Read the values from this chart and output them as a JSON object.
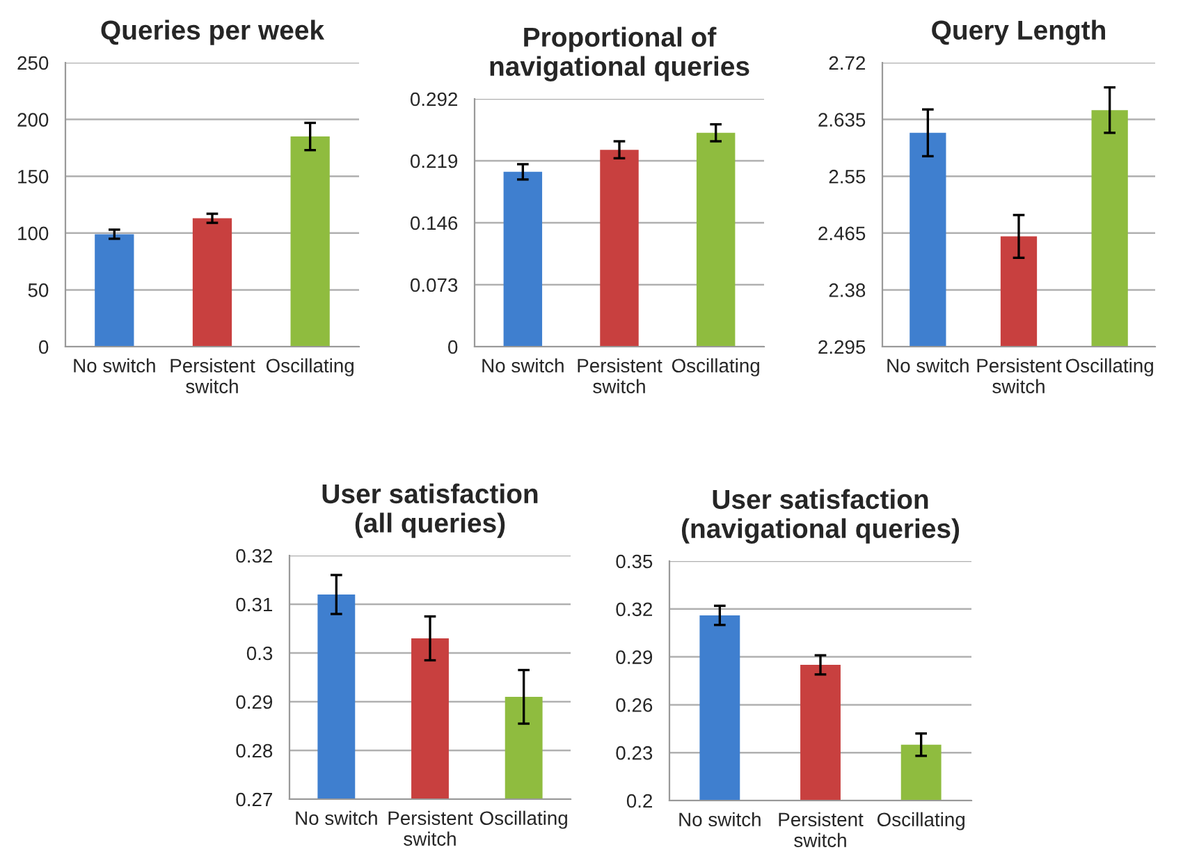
{
  "chart_data": [
    {
      "type": "bar",
      "title": "Queries per week",
      "categories": [
        "No switch",
        "Persistent switch",
        "Oscillating"
      ],
      "values": [
        99,
        113,
        185
      ],
      "errors": [
        4,
        4,
        12
      ],
      "colors": [
        "#3f7fcf",
        "#c8403f",
        "#8fbc3f"
      ],
      "ylim": [
        0,
        250
      ],
      "yticks": [
        0,
        50,
        100,
        150,
        200,
        250
      ],
      "grid": "y"
    },
    {
      "type": "bar",
      "title": "Proportional of navigational queries",
      "categories": [
        "No switch",
        "Persistent switch",
        "Oscillating"
      ],
      "values": [
        0.206,
        0.232,
        0.252
      ],
      "errors": [
        0.009,
        0.01,
        0.01
      ],
      "colors": [
        "#3f7fcf",
        "#c8403f",
        "#8fbc3f"
      ],
      "ylim": [
        0,
        0.292
      ],
      "yticks": [
        0,
        0.073,
        0.146,
        0.219,
        0.292
      ],
      "grid": "y"
    },
    {
      "type": "bar",
      "title": "Query Length",
      "categories": [
        "No switch",
        "Persistent switch",
        "Oscillating"
      ],
      "values": [
        2.615,
        2.46,
        2.649
      ],
      "errors": [
        0.035,
        0.032,
        0.034
      ],
      "colors": [
        "#3f7fcf",
        "#c8403f",
        "#8fbc3f"
      ],
      "ylim": [
        2.295,
        2.72
      ],
      "yticks": [
        2.295,
        2.38,
        2.465,
        2.55,
        2.635,
        2.72
      ],
      "grid": "y"
    },
    {
      "type": "bar",
      "title": "User satisfaction (all queries)",
      "categories": [
        "No switch",
        "Persistent switch",
        "Oscillating"
      ],
      "values": [
        0.312,
        0.303,
        0.291
      ],
      "errors": [
        0.004,
        0.0045,
        0.0055
      ],
      "colors": [
        "#3f7fcf",
        "#c8403f",
        "#8fbc3f"
      ],
      "ylim": [
        0.27,
        0.32
      ],
      "yticks": [
        0.27,
        0.28,
        0.29,
        0.3,
        0.31,
        0.32
      ],
      "grid": "y"
    },
    {
      "type": "bar",
      "title": "User satisfaction (navigational queries)",
      "categories": [
        "No switch",
        "Persistent switch",
        "Oscillating"
      ],
      "values": [
        0.316,
        0.285,
        0.235
      ],
      "errors": [
        0.006,
        0.006,
        0.007
      ],
      "colors": [
        "#3f7fcf",
        "#c8403f",
        "#8fbc3f"
      ],
      "ylim": [
        0.2,
        0.35
      ],
      "yticks": [
        0.2,
        0.23,
        0.26,
        0.29,
        0.32,
        0.35
      ],
      "grid": "y"
    }
  ]
}
